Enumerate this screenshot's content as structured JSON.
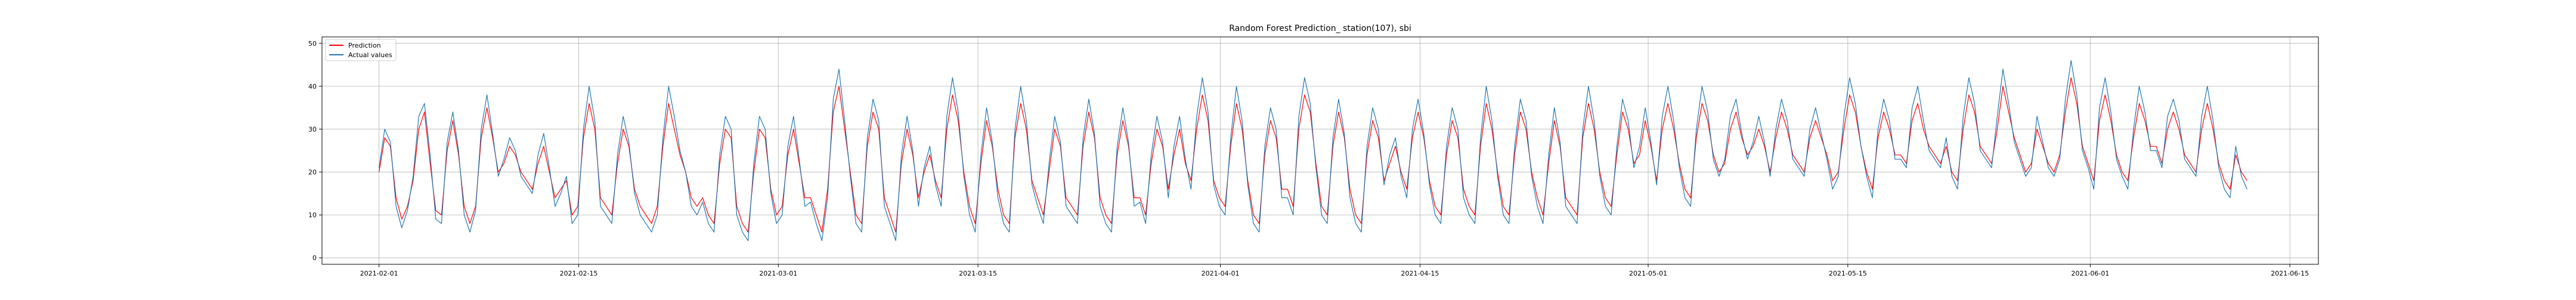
{
  "chart_data": {
    "type": "line",
    "title": "Random Forest Prediction_ station(107), sbi",
    "xlabel": "",
    "ylabel": "",
    "x_range": [
      "2021-01-28",
      "2021-06-17"
    ],
    "ylim": [
      -1.5,
      51.5
    ],
    "yticks": [
      0,
      10,
      20,
      30,
      40,
      50
    ],
    "xticks": [
      "2021-02-01",
      "2021-02-15",
      "2021-03-01",
      "2021-03-15",
      "2021-04-01",
      "2021-04-15",
      "2021-05-01",
      "2021-05-15",
      "2021-06-01",
      "2021-06-15"
    ],
    "grid": true,
    "legend_position": "top-left",
    "data_start": "2021-02-01",
    "data_end": "2021-06-12",
    "series": [
      {
        "name": "Prediction",
        "color": "#ff0000",
        "values": [
          20,
          28,
          26,
          14,
          9,
          12,
          18,
          30,
          34,
          22,
          11,
          10,
          25,
          32,
          24,
          12,
          8,
          12,
          28,
          35,
          28,
          20,
          22,
          26,
          24,
          20,
          18,
          16,
          22,
          26,
          20,
          14,
          16,
          18,
          10,
          12,
          28,
          36,
          30,
          14,
          12,
          10,
          22,
          30,
          26,
          16,
          12,
          10,
          8,
          12,
          26,
          36,
          30,
          24,
          20,
          14,
          12,
          14,
          10,
          8,
          22,
          30,
          28,
          12,
          8,
          6,
          20,
          30,
          28,
          16,
          10,
          12,
          24,
          30,
          22,
          14,
          14,
          10,
          6,
          16,
          34,
          40,
          30,
          20,
          10,
          8,
          26,
          34,
          30,
          14,
          10,
          6,
          22,
          30,
          24,
          14,
          20,
          24,
          18,
          14,
          30,
          38,
          32,
          20,
          12,
          8,
          22,
          32,
          26,
          16,
          10,
          8,
          28,
          36,
          30,
          18,
          14,
          10,
          20,
          30,
          26,
          14,
          12,
          10,
          26,
          34,
          28,
          14,
          10,
          8,
          24,
          32,
          26,
          14,
          14,
          10,
          22,
          30,
          26,
          16,
          24,
          30,
          22,
          18,
          30,
          38,
          32,
          18,
          14,
          12,
          26,
          36,
          30,
          18,
          10,
          8,
          24,
          32,
          28,
          16,
          16,
          12,
          30,
          38,
          34,
          22,
          12,
          10,
          26,
          34,
          28,
          16,
          10,
          8,
          24,
          32,
          28,
          18,
          22,
          26,
          20,
          16,
          28,
          34,
          28,
          18,
          12,
          10,
          24,
          32,
          28,
          16,
          12,
          10,
          26,
          36,
          30,
          20,
          12,
          10,
          24,
          34,
          30,
          20,
          14,
          10,
          22,
          32,
          26,
          14,
          12,
          10,
          28,
          36,
          30,
          20,
          14,
          12,
          24,
          34,
          30,
          22,
          24,
          32,
          26,
          18,
          30,
          36,
          30,
          22,
          16,
          14,
          28,
          36,
          32,
          24,
          20,
          22,
          30,
          34,
          28,
          24,
          26,
          30,
          26,
          20,
          28,
          34,
          30,
          24,
          22,
          20,
          28,
          32,
          28,
          24,
          18,
          20,
          30,
          38,
          34,
          26,
          20,
          16,
          28,
          34,
          30,
          24,
          24,
          22,
          32,
          36,
          30,
          26,
          24,
          22,
          26,
          20,
          18,
          30,
          38,
          34,
          26,
          24,
          22,
          30,
          40,
          34,
          28,
          24,
          20,
          22,
          30,
          26,
          22,
          20,
          24,
          34,
          42,
          36,
          26,
          22,
          18,
          32,
          38,
          32,
          24,
          20,
          18,
          28,
          36,
          32,
          26,
          26,
          22,
          30,
          34,
          30,
          24,
          22,
          20,
          30,
          36,
          30,
          22,
          18,
          16,
          24,
          20,
          18
        ]
      },
      {
        "name": "Actual values",
        "color": "#1f77b4",
        "values": [
          21,
          30,
          27,
          12,
          7,
          11,
          19,
          33,
          36,
          24,
          9,
          8,
          27,
          34,
          25,
          10,
          6,
          11,
          30,
          38,
          29,
          19,
          23,
          28,
          25,
          19,
          17,
          15,
          24,
          29,
          21,
          12,
          15,
          19,
          8,
          10,
          30,
          40,
          32,
          12,
          10,
          8,
          24,
          33,
          27,
          15,
          10,
          8,
          6,
          10,
          28,
          40,
          33,
          25,
          20,
          12,
          10,
          13,
          8,
          6,
          24,
          33,
          30,
          10,
          6,
          4,
          22,
          33,
          30,
          15,
          8,
          10,
          26,
          33,
          23,
          12,
          13,
          8,
          4,
          14,
          37,
          44,
          32,
          19,
          8,
          6,
          28,
          37,
          32,
          12,
          8,
          4,
          24,
          33,
          25,
          12,
          21,
          26,
          17,
          12,
          33,
          42,
          34,
          19,
          10,
          6,
          24,
          35,
          27,
          14,
          8,
          6,
          30,
          40,
          32,
          17,
          12,
          8,
          22,
          33,
          27,
          12,
          10,
          8,
          28,
          37,
          29,
          12,
          8,
          6,
          26,
          35,
          27,
          12,
          13,
          8,
          24,
          33,
          27,
          14,
          26,
          33,
          23,
          16,
          33,
          42,
          34,
          17,
          12,
          10,
          28,
          40,
          32,
          17,
          8,
          6,
          26,
          35,
          30,
          14,
          14,
          10,
          33,
          42,
          36,
          21,
          10,
          8,
          28,
          37,
          29,
          14,
          8,
          6,
          26,
          35,
          30,
          17,
          24,
          28,
          19,
          14,
          30,
          37,
          29,
          17,
          10,
          8,
          26,
          35,
          30,
          14,
          10,
          8,
          28,
          40,
          32,
          19,
          10,
          8,
          26,
          37,
          32,
          19,
          12,
          8,
          24,
          35,
          27,
          12,
          10,
          8,
          30,
          40,
          32,
          19,
          12,
          10,
          26,
          37,
          32,
          21,
          26,
          35,
          27,
          17,
          33,
          40,
          32,
          21,
          14,
          12,
          30,
          40,
          34,
          23,
          19,
          23,
          33,
          37,
          29,
          23,
          27,
          33,
          27,
          19,
          30,
          37,
          32,
          23,
          21,
          19,
          30,
          35,
          29,
          23,
          16,
          19,
          33,
          42,
          36,
          26,
          19,
          14,
          30,
          37,
          32,
          23,
          23,
          21,
          35,
          40,
          32,
          25,
          23,
          21,
          28,
          19,
          16,
          33,
          42,
          36,
          25,
          23,
          21,
          33,
          44,
          36,
          27,
          23,
          19,
          21,
          33,
          27,
          21,
          19,
          23,
          37,
          46,
          38,
          25,
          21,
          16,
          35,
          42,
          34,
          23,
          19,
          16,
          30,
          40,
          34,
          25,
          25,
          21,
          33,
          37,
          32,
          23,
          21,
          19,
          33,
          40,
          32,
          21,
          16,
          14,
          26,
          19,
          16
        ]
      }
    ]
  }
}
